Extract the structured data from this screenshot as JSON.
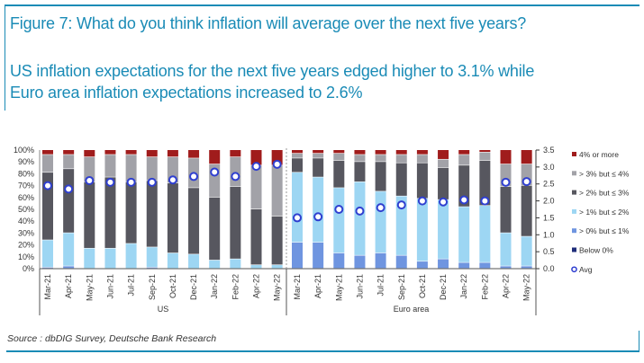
{
  "header": {
    "title": "Figure 7: What do you think inflation will average over the next five years?",
    "subtitle_line1": "US inflation expectations for the next five years edged higher to 3.1% while",
    "subtitle_line2": "Euro area inflation expectations increased to 2.6%"
  },
  "footer": {
    "source": "Source : dbDIG Survey, Deutsche Bank Research"
  },
  "chart_data": {
    "type": "bar",
    "stacked": true,
    "title": "What do you think inflation will average over the next five years?",
    "groups": [
      {
        "name": "US",
        "categories": [
          "Mar-21",
          "Apr-21",
          "May-21",
          "Jun-21",
          "Jul-21",
          "Sep-21",
          "Oct-21",
          "Dec-21",
          "Jan-22",
          "Feb-22",
          "Apr-22",
          "May-22"
        ]
      },
      {
        "name": "Euro area",
        "categories": [
          "Mar-21",
          "Apr-21",
          "May-21",
          "Jun-21",
          "Jul-21",
          "Sep-21",
          "Oct-21",
          "Dec-21",
          "Jan-22",
          "Feb-22",
          "Apr-22",
          "May-22"
        ]
      }
    ],
    "series": [
      {
        "name": "Below 0%",
        "color": "#1f2d7a",
        "values": [
          0,
          0,
          0,
          0,
          0,
          0,
          0,
          0,
          0,
          0,
          0,
          0,
          0,
          0,
          0,
          0,
          0,
          0,
          0,
          0,
          0,
          0,
          0,
          0
        ]
      },
      {
        "name": "> 0% but ≤ 1%",
        "color": "#6f95e0",
        "values": [
          1,
          2,
          0,
          0,
          0,
          1,
          0,
          0,
          0,
          0,
          0,
          0,
          22,
          22,
          13,
          11,
          13,
          11,
          6,
          8,
          5,
          5,
          2,
          2
        ]
      },
      {
        "name": "> 1% but ≤ 2%",
        "color": "#9dd6f3",
        "values": [
          23,
          28,
          17,
          17,
          21,
          17,
          13,
          12,
          7,
          8,
          3,
          3,
          59,
          55,
          55,
          62,
          52,
          50,
          53,
          50,
          47,
          48,
          28,
          25
        ]
      },
      {
        "name": "> 2% but ≤ 3%",
        "color": "#57575f",
        "values": [
          57,
          54,
          56,
          60,
          52,
          56,
          59,
          56,
          53,
          61,
          47,
          41,
          12,
          16,
          23,
          17,
          25,
          28,
          30,
          27,
          35,
          38,
          39,
          43
        ]
      },
      {
        "name": "> 3% but ≤ 4%",
        "color": "#a2a2a8",
        "values": [
          15,
          12,
          21,
          19,
          23,
          20,
          22,
          25,
          28,
          25,
          37,
          43,
          4,
          4,
          6,
          6,
          6,
          7,
          7,
          7,
          9,
          7,
          19,
          18
        ]
      },
      {
        "name": "4% or more",
        "color": "#a01c1c",
        "values": [
          4,
          4,
          6,
          4,
          4,
          6,
          6,
          7,
          12,
          6,
          13,
          13,
          3,
          3,
          3,
          4,
          4,
          4,
          4,
          8,
          4,
          2,
          12,
          12
        ]
      }
    ],
    "avg": {
      "name": "Avg",
      "color": "#2f3fd0",
      "values": [
        2.45,
        2.35,
        2.6,
        2.55,
        2.55,
        2.55,
        2.62,
        2.72,
        2.85,
        2.72,
        3.02,
        3.08,
        1.5,
        1.53,
        1.75,
        1.7,
        1.8,
        1.88,
        2.0,
        1.97,
        2.03,
        2.0,
        2.55,
        2.57
      ]
    },
    "left_axis": {
      "ylim": [
        0,
        100
      ],
      "ticks": [
        "0%",
        "10%",
        "20%",
        "30%",
        "40%",
        "50%",
        "60%",
        "70%",
        "80%",
        "90%",
        "100%"
      ]
    },
    "right_axis": {
      "ylim": [
        0,
        3.5
      ],
      "ticks": [
        "0.0",
        "0.5",
        "1.0",
        "1.5",
        "2.0",
        "2.5",
        "3.0",
        "3.5"
      ]
    },
    "legend": {
      "placement": "right",
      "entries": [
        "4% or more",
        "> 3% but ≤ 4%",
        "> 2% but ≤ 3%",
        "> 1% but ≤ 2%",
        "> 0% but ≤ 1%",
        "Below 0%",
        "Avg"
      ]
    },
    "grid": false
  }
}
